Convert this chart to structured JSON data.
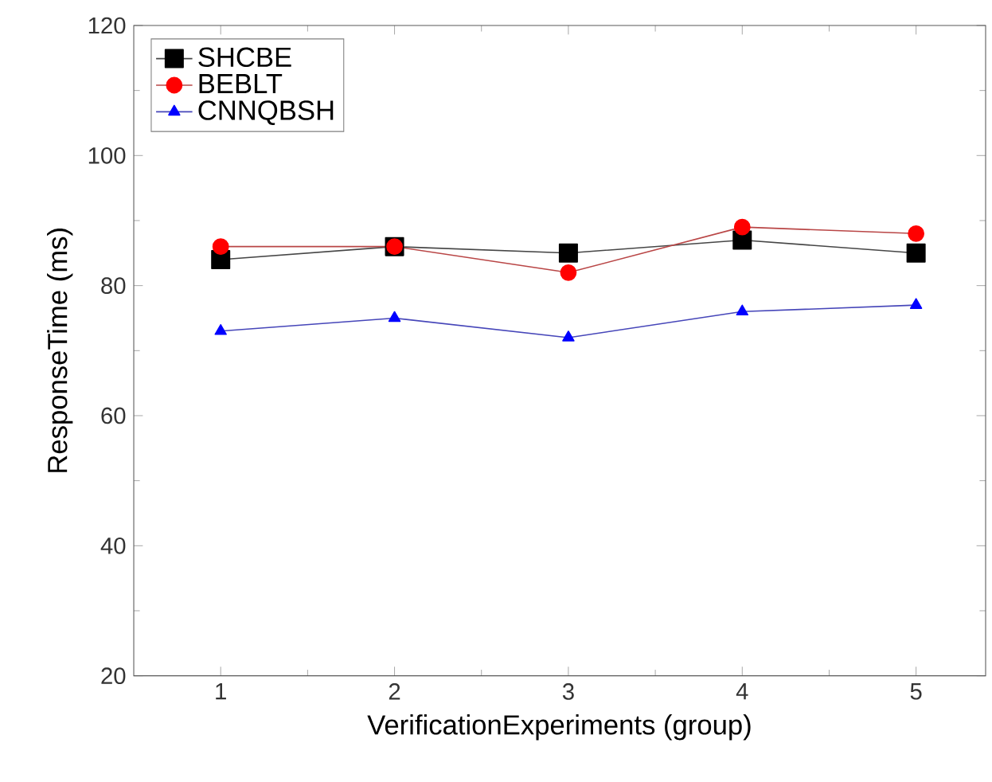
{
  "chart_data": {
    "type": "line",
    "xlabel": "VerificationExperiments (group)",
    "ylabel": "ResponseTime (ms)",
    "x": [
      1,
      2,
      3,
      4,
      5
    ],
    "xlim": [
      0.5,
      5.4
    ],
    "ylim": [
      20,
      120
    ],
    "xticks": [
      1,
      2,
      3,
      4,
      5
    ],
    "yticks": [
      20,
      40,
      60,
      80,
      100,
      120
    ],
    "legend": "top left",
    "line_style": "solid",
    "series": [
      {
        "name": "SHCBE",
        "color": "#000000",
        "marker": "square",
        "values": [
          84,
          86,
          85,
          87,
          85
        ]
      },
      {
        "name": "BEBLT",
        "color": "#ff0000",
        "marker": "circle",
        "values": [
          86,
          86,
          82,
          89,
          88
        ]
      },
      {
        "name": "CNNQBSH",
        "color": "#0000ff",
        "marker": "triangle",
        "values": [
          73,
          75,
          72,
          76,
          77
        ]
      }
    ]
  }
}
